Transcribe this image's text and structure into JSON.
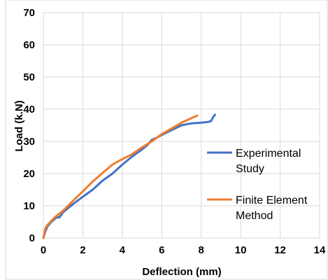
{
  "chart_data": {
    "type": "line",
    "xlabel": "Deflection (mm)",
    "ylabel": "Load (k.N)",
    "xlim": [
      0,
      14
    ],
    "ylim": [
      0,
      70
    ],
    "xticks": [
      0,
      2,
      4,
      6,
      8,
      10,
      12,
      14
    ],
    "yticks": [
      0,
      10,
      20,
      30,
      40,
      50,
      60,
      70
    ],
    "grid": true,
    "legend_position": "right",
    "series": [
      {
        "name_lines": [
          "Experimental",
          "Study"
        ],
        "color": "#4472C4",
        "x": [
          0,
          0.1,
          0.2,
          0.4,
          0.6,
          0.7,
          0.8,
          1.0,
          1.5,
          2.0,
          2.5,
          3.0,
          3.5,
          4.0,
          4.5,
          5.0,
          5.3,
          5.5,
          5.8,
          6.0,
          6.5,
          7.0,
          7.5,
          8.0,
          8.3,
          8.5,
          8.6,
          8.7
        ],
        "y": [
          0,
          2,
          3.5,
          5,
          6,
          6.5,
          6.3,
          8,
          10.5,
          12.8,
          15,
          17.8,
          20,
          22.8,
          25.3,
          27.5,
          29,
          30.5,
          31.3,
          32,
          33.5,
          35,
          35.6,
          35.8,
          36,
          36.3,
          37.5,
          38.3
        ]
      },
      {
        "name_lines": [
          "Finite Element",
          "Method"
        ],
        "color": "#ED7D31",
        "x": [
          0,
          0.1,
          0.2,
          0.4,
          0.6,
          1.0,
          1.5,
          2.0,
          2.5,
          3.0,
          3.5,
          4.0,
          4.5,
          5.0,
          5.5,
          6.0,
          6.5,
          7.0,
          7.5,
          7.8
        ],
        "y": [
          0,
          3,
          4,
          5.3,
          6.5,
          8.5,
          11.5,
          14.5,
          17.5,
          20.2,
          22.8,
          24.5,
          26,
          28.2,
          30,
          32.3,
          34,
          35.8,
          37.2,
          38
        ]
      }
    ]
  }
}
